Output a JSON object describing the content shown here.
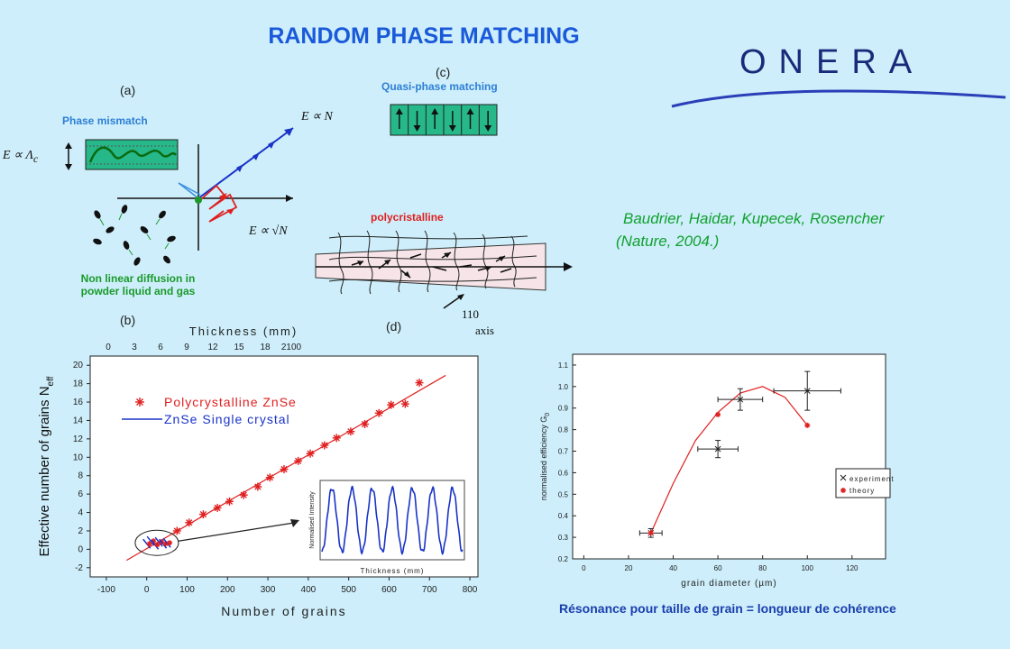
{
  "title": "RANDOM PHASE MATCHING",
  "logo": {
    "text": "ONERA",
    "color": "#1a2a7a"
  },
  "panel_a": {
    "label": "(a)",
    "phase_mismatch": "Phase mismatch",
    "diffusion_line1": "Non linear diffusion in",
    "diffusion_line2": "powder liquid and gas",
    "eq_left": "E ∝ Λ",
    "eq_left_sub": "c",
    "eq_top": "E ∝ N",
    "eq_bottom": "E ∝ √N"
  },
  "panel_b": {
    "label": "(b)"
  },
  "panel_c": {
    "label": "(c)",
    "quasi": "Quasi-phase matching",
    "arrows": [
      "up",
      "down",
      "up",
      "down",
      "up",
      "down"
    ]
  },
  "panel_d": {
    "label": "(d)",
    "poly": "polycristalline",
    "axis_num": "110",
    "axis_word": "axis"
  },
  "reference": {
    "line1": "Baudrier, Haidar, Kupecek, Rosencher",
    "line2": "(Nature, 2004.)"
  },
  "caption": "Résonance pour taille de grain = longueur de cohérence",
  "colors": {
    "title": "#1a59d9",
    "poly": "#e02020",
    "single": "#1a33c8",
    "green": "#1b9a2a",
    "background": "#cdeefa"
  },
  "chart_data": [
    {
      "type": "scatter",
      "title": "",
      "xlabel": "Number of grains",
      "ylabel": "Effective number of grains N",
      "ylabel_sub": "eff",
      "top_axis_label": "Thickness (mm)",
      "top_ticks": [
        "0",
        "3",
        "6",
        "9",
        "12",
        "15",
        "18",
        "2100"
      ],
      "x_ticks": [
        -100,
        0,
        100,
        200,
        300,
        400,
        500,
        600,
        700,
        800
      ],
      "y_ticks": [
        -2,
        0,
        2,
        4,
        6,
        8,
        10,
        12,
        14,
        16,
        18,
        20
      ],
      "xlim": [
        -140,
        820
      ],
      "ylim": [
        -3,
        21
      ],
      "legend": [
        "Polycrystalline ZnSe",
        "ZnSe Single crystal"
      ],
      "series": [
        {
          "name": "Polycrystalline ZnSe",
          "x": [
            75,
            105,
            140,
            175,
            205,
            240,
            275,
            305,
            340,
            375,
            405,
            440,
            470,
            505,
            540,
            575,
            605,
            640,
            675
          ],
          "y": [
            2.0,
            2.9,
            3.8,
            4.5,
            5.2,
            5.9,
            6.8,
            7.8,
            8.7,
            9.6,
            10.4,
            11.3,
            12.1,
            12.8,
            13.6,
            14.8,
            15.7,
            15.8,
            18.1
          ]
        },
        {
          "name": "ZnSe Single crystal",
          "x": [
            0,
            10,
            20,
            30,
            40,
            50
          ],
          "y": [
            0.6,
            0.9,
            0.5,
            0.8,
            0.6,
            0.7
          ]
        }
      ],
      "fit_line": {
        "x": [
          -50,
          740
        ],
        "y": [
          -1.2,
          18.9
        ]
      },
      "inset": {
        "xlabel": "Thickness (mm)",
        "ylabel": "Normalised Intensity",
        "periods": 7
      }
    },
    {
      "type": "scatter",
      "title": "",
      "xlabel": "grain diameter (µm)",
      "ylabel": "normalised efficiency G",
      "ylabel_sub": "0",
      "x_ticks": [
        0,
        20,
        40,
        60,
        80,
        100,
        120
      ],
      "y_ticks": [
        0.2,
        0.3,
        0.4,
        0.5,
        0.6,
        0.7,
        0.8,
        0.9,
        1.0,
        1.1
      ],
      "xlim": [
        -5,
        135
      ],
      "ylim": [
        0.2,
        1.15
      ],
      "legend": [
        "experiment",
        "theory"
      ],
      "experiment": [
        {
          "x": 30,
          "y": 0.32,
          "xerr": 5,
          "yerr": 0.02
        },
        {
          "x": 60,
          "y": 0.71,
          "xerr": 9,
          "yerr": 0.04
        },
        {
          "x": 70,
          "y": 0.94,
          "xerr": 10,
          "yerr": 0.05
        },
        {
          "x": 100,
          "y": 0.98,
          "xerr": 15,
          "yerr": 0.09
        }
      ],
      "theory": {
        "x": [
          30,
          60,
          100
        ],
        "y": [
          0.32,
          0.87,
          0.82
        ]
      },
      "curve": {
        "x": [
          30,
          40,
          50,
          60,
          70,
          80,
          90,
          100
        ],
        "y": [
          0.32,
          0.55,
          0.75,
          0.88,
          0.97,
          1.0,
          0.95,
          0.82
        ]
      }
    }
  ]
}
